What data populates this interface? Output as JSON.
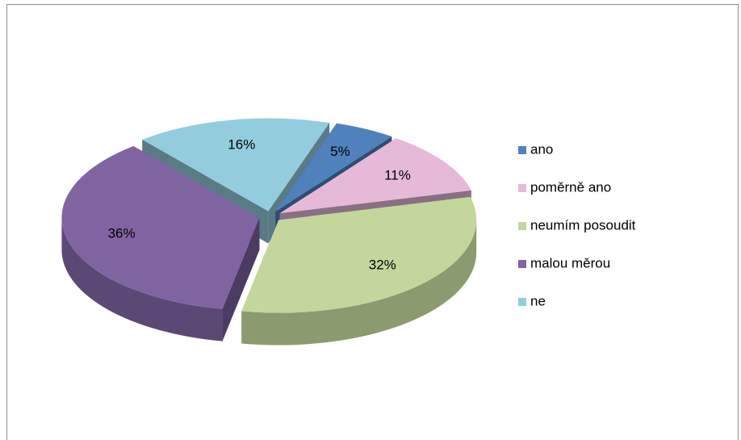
{
  "chart_data": {
    "type": "pie",
    "categories": [
      "ano",
      "poměrně ano",
      "neumím posoudit",
      "malou měrou",
      "ne"
    ],
    "values": [
      5,
      11,
      32,
      36,
      16
    ],
    "value_labels": [
      "5%",
      "11%",
      "32%",
      "36%",
      "16%"
    ],
    "colors": [
      "#4f81bd",
      "#e6b9d8",
      "#c3d69b",
      "#8064a2",
      "#93cddd"
    ],
    "legend": "right"
  }
}
